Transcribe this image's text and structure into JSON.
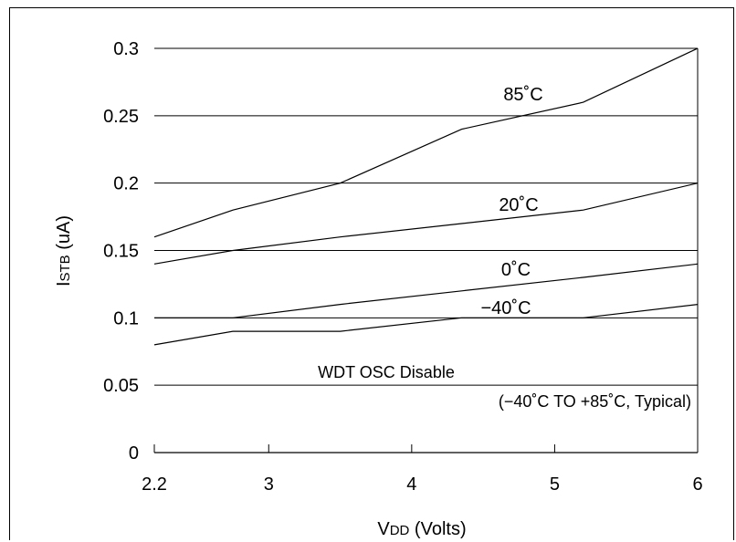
{
  "chart_data": {
    "type": "line",
    "title": "",
    "xlabel": {
      "main": "V",
      "sub": "DD",
      "rest": " (Volts)"
    },
    "ylabel": {
      "main": "I",
      "sub": "STB",
      "rest": " (uA)"
    },
    "xlim": [
      2.2,
      6
    ],
    "ylim": [
      0,
      0.3
    ],
    "xticks": [
      2.2,
      3,
      4,
      5,
      6
    ],
    "xtick_labels": [
      "2.2",
      "3",
      "4",
      "5",
      "6"
    ],
    "yticks": [
      0,
      0.05,
      0.1,
      0.15,
      0.2,
      0.25,
      0.3
    ],
    "ytick_labels": [
      "0",
      "0.05",
      "0.1",
      "0.15",
      "0.2",
      "0.25",
      "0.3"
    ],
    "grid": "horizontal",
    "series": [
      {
        "name": "85˚C",
        "x": [
          2.2,
          2.75,
          3.5,
          4.35,
          5.2,
          6
        ],
        "y": [
          0.16,
          0.18,
          0.2,
          0.24,
          0.26,
          0.3
        ]
      },
      {
        "name": "20˚C",
        "x": [
          2.2,
          2.75,
          3.5,
          4.35,
          5.2,
          6
        ],
        "y": [
          0.14,
          0.15,
          0.16,
          0.17,
          0.18,
          0.2
        ]
      },
      {
        "name": "0˚C",
        "x": [
          2.2,
          2.75,
          3.5,
          4.35,
          5.2,
          6
        ],
        "y": [
          0.1,
          0.1,
          0.11,
          0.12,
          0.13,
          0.14
        ]
      },
      {
        "name": "−40˚C",
        "x": [
          2.2,
          2.75,
          3.5,
          4.35,
          5.2,
          6
        ],
        "y": [
          0.08,
          0.09,
          0.09,
          0.1,
          0.1,
          0.11
        ]
      }
    ],
    "annotations": [
      {
        "text": "WDT OSC Disable"
      },
      {
        "text": "(−40˚C TO +85˚C, Typical)"
      }
    ]
  }
}
